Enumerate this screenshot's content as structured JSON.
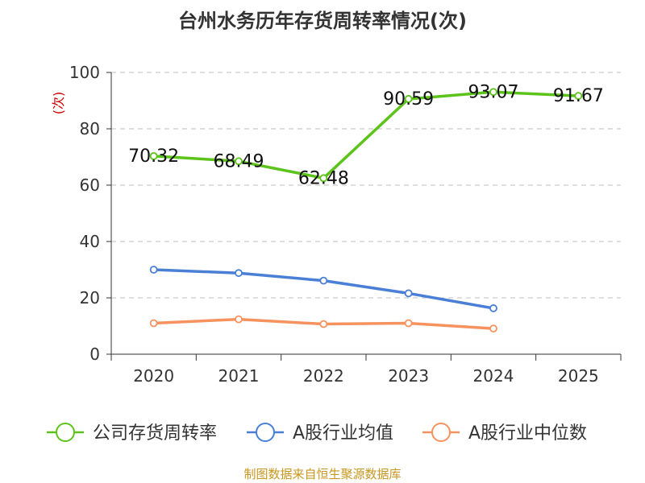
{
  "chart_data": {
    "type": "line",
    "title": "台州水务历年存货周转率情况(次)",
    "ylabel": "(次)",
    "xlabel": "",
    "categories": [
      "2020",
      "2021",
      "2022",
      "2023",
      "2024",
      "2025"
    ],
    "ylim": [
      0,
      100
    ],
    "yticks": [
      0,
      20,
      40,
      60,
      80,
      100
    ],
    "grid": true,
    "legend_position": "bottom",
    "series": [
      {
        "name": "公司存货周转率",
        "color": "#5cc31a",
        "values": [
          70.32,
          68.49,
          62.48,
          90.59,
          93.07,
          91.67
        ],
        "labels": [
          "70.32",
          "68.49",
          "62.48",
          "90.59",
          "93.07",
          "91.67"
        ]
      },
      {
        "name": "A股行业均值",
        "color": "#4a7fd6",
        "values": [
          30.0,
          28.8,
          26.1,
          21.6,
          16.3,
          null
        ]
      },
      {
        "name": "A股行业中位数",
        "color": "#f5925e",
        "values": [
          11.0,
          12.4,
          10.7,
          11.0,
          9.1,
          null
        ]
      }
    ]
  },
  "source": "制图数据来自恒生聚源数据库"
}
